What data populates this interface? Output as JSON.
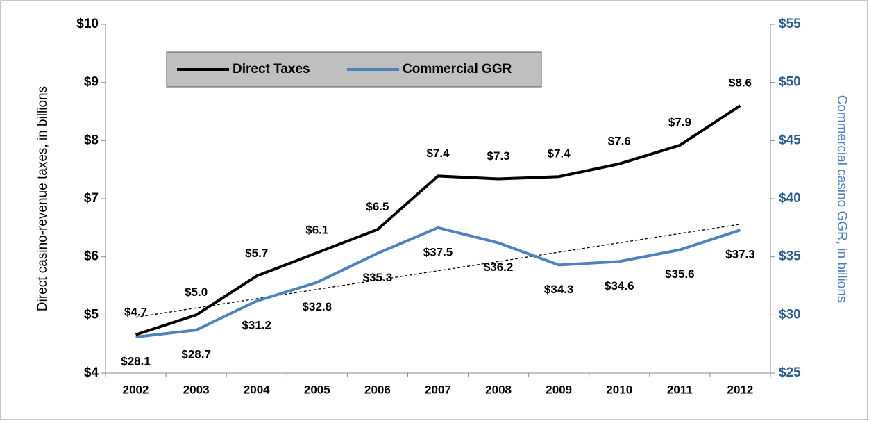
{
  "chart_data": {
    "type": "line",
    "ylabel": "Direct casino-revenue taxes, in billions",
    "y2label": "Commercial casino GGR, in billions",
    "categories": [
      "2002",
      "2003",
      "2004",
      "2005",
      "2006",
      "2007",
      "2008",
      "2009",
      "2010",
      "2011",
      "2012"
    ],
    "series": [
      {
        "name": "Direct Taxes",
        "color": "#000000",
        "values": [
          4.66,
          5.0,
          5.67,
          6.07,
          6.47,
          7.39,
          7.34,
          7.38,
          7.6,
          7.92,
          8.6
        ],
        "value_labels": [
          "$4.7",
          "$5.0",
          "$5.7",
          "$6.1",
          "$6.5",
          "$7.4",
          "$7.3",
          "$7.4",
          "$7.6",
          "$7.9",
          "$8.6"
        ]
      },
      {
        "name": "Commercial GGR",
        "color": "#4f81bd",
        "axis": "y2",
        "values": [
          28.1,
          28.7,
          31.2,
          32.8,
          35.3,
          37.5,
          36.2,
          34.3,
          34.6,
          35.6,
          37.3
        ],
        "value_labels": [
          "$28.1",
          "$28.7",
          "$31.2",
          "$32.8",
          "$35.3",
          "$37.5",
          "$36.2",
          "$34.3",
          "$34.6",
          "$35.6",
          "$37.3"
        ]
      }
    ],
    "trendline": {
      "axis": "y2",
      "values": [
        29.8,
        37.8
      ]
    },
    "ylim": [
      4,
      10
    ],
    "yticks": [
      {
        "value": 4,
        "label": "$4"
      },
      {
        "value": 5,
        "label": "$5"
      },
      {
        "value": 6,
        "label": "$6"
      },
      {
        "value": 7,
        "label": "$7"
      },
      {
        "value": 8,
        "label": "$8"
      },
      {
        "value": 9,
        "label": "$9"
      },
      {
        "value": 10,
        "label": "$10"
      }
    ],
    "y2lim": [
      25,
      55
    ],
    "y2ticks": [
      {
        "value": 25,
        "label": "$25"
      },
      {
        "value": 30,
        "label": "$30"
      },
      {
        "value": 35,
        "label": "$35"
      },
      {
        "value": 40,
        "label": "$40"
      },
      {
        "value": 45,
        "label": "$45"
      },
      {
        "value": 50,
        "label": "$50"
      },
      {
        "value": 55,
        "label": "$55"
      }
    ],
    "y2color": "#2e5a8e",
    "legend": "top-left"
  }
}
